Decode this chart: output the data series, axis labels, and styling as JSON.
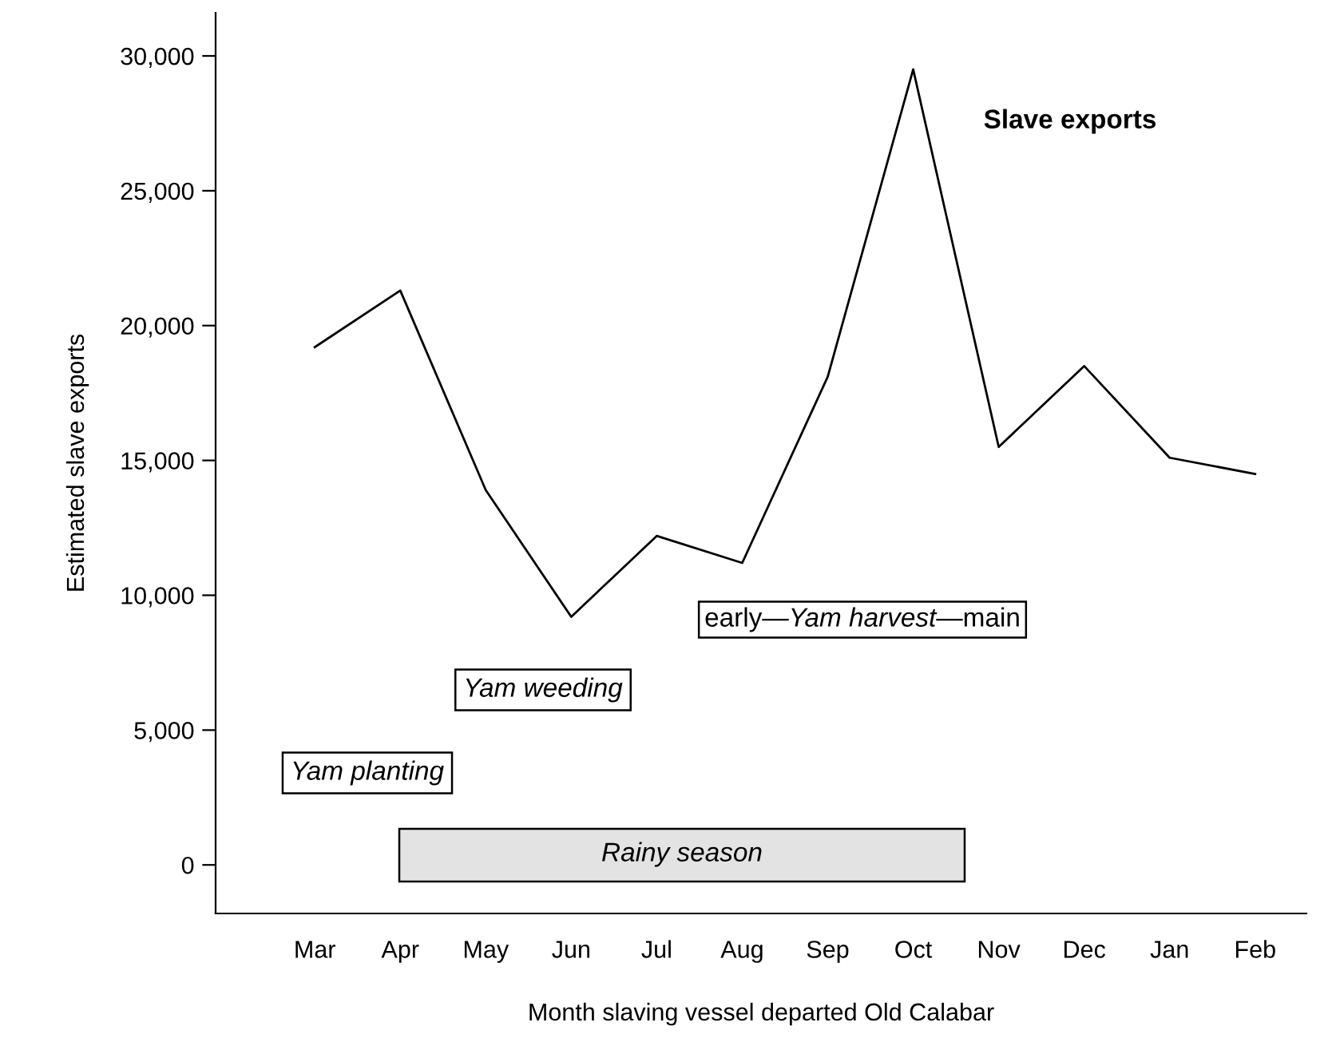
{
  "chart_data": {
    "type": "line",
    "xlabel": "Month slaving vessel departed Old Calabar",
    "ylabel": "Estimated slave exports",
    "categories": [
      "Mar",
      "Apr",
      "May",
      "Jun",
      "Jul",
      "Aug",
      "Sep",
      "Oct",
      "Nov",
      "Dec",
      "Jan",
      "Feb"
    ],
    "series": [
      {
        "name": "Slave exports",
        "color": "#000000",
        "values": [
          19200,
          21300,
          13900,
          9200,
          12200,
          11200,
          18100,
          29500,
          15500,
          18500,
          15100,
          14500
        ]
      }
    ],
    "ylim": [
      -1800,
      31600
    ],
    "yticks": [
      {
        "value": 0,
        "label": "0"
      },
      {
        "value": 5000,
        "label": "5,000"
      },
      {
        "value": 10000,
        "label": "10,000"
      },
      {
        "value": 15000,
        "label": "15,000"
      },
      {
        "value": 20000,
        "label": "20,000"
      },
      {
        "value": 25000,
        "label": "25,000"
      },
      {
        "value": 30000,
        "label": "30,000"
      }
    ],
    "annotations": [
      "Yam planting",
      "Yam weeding",
      "early—Yam harvest—main",
      "Rainy season"
    ],
    "grid": false,
    "legend": false,
    "marker": "none",
    "line_style": "solid"
  }
}
